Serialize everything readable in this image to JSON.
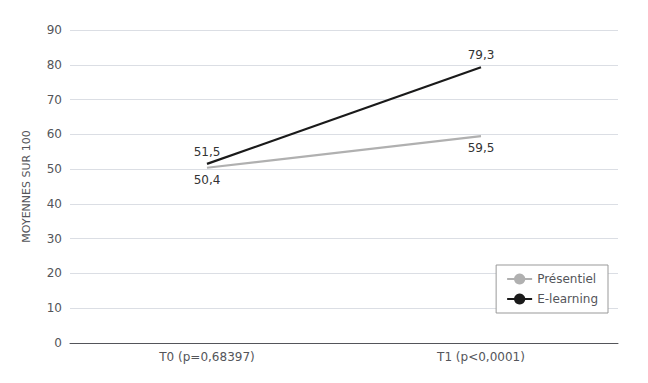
{
  "chart_data": {
    "type": "line",
    "categories": [
      "T0 (p=0,68397)",
      "T1 (p<0,0001)"
    ],
    "series": [
      {
        "name": "Présentiel",
        "color": "#b0b0b0",
        "values": [
          50.4,
          59.5
        ],
        "value_labels": [
          "50,4",
          "59,5"
        ]
      },
      {
        "name": "E-learning",
        "color": "#1a1a1a",
        "values": [
          51.5,
          79.3
        ],
        "value_labels": [
          "51,5",
          "79,3"
        ]
      }
    ],
    "y_label": "MOYENNES SUR 100",
    "ylim": [
      0,
      90
    ],
    "yticks": [
      0,
      10,
      20,
      30,
      40,
      50,
      60,
      70,
      80,
      90
    ],
    "grid": true,
    "legend": "lower right",
    "data_labels": true
  }
}
